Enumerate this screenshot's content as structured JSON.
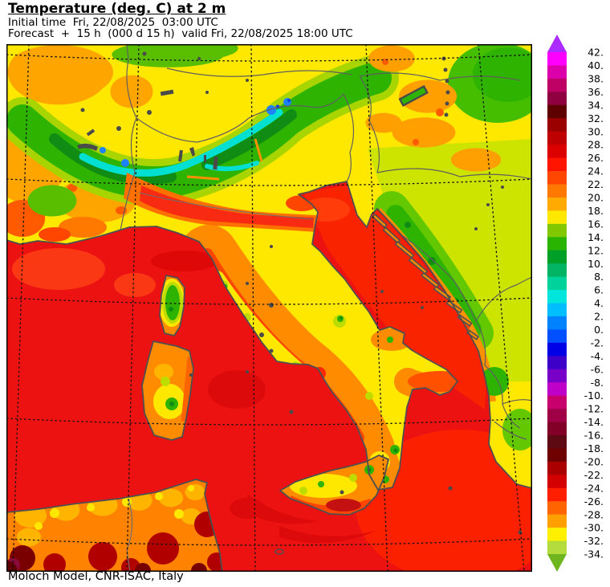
{
  "header": {
    "title": "Temperature (deg. C) at 2 m",
    "initial_time_line": "Initial time  Fri, 22/08/2025  03:00 UTC",
    "forecast_line": "Forecast  +  15 h  (000 d 15 h)  valid Fri, 22/08/2025 18:00 UTC"
  },
  "footer": {
    "credit": "Moloch Model, CNR-ISAC, Italy"
  },
  "colorbar": {
    "unit": "deg. C",
    "tick_labels": [
      "42.",
      "40.",
      "38.",
      "36.",
      "34.",
      "32.",
      "30.",
      "28.",
      "26.",
      "24.",
      "22.",
      "20.",
      "18.",
      "16.",
      "14.",
      "12.",
      "10.",
      "8.",
      "6.",
      "4.",
      "2.",
      "0.",
      "-2.",
      "-4.",
      "-6.",
      "-8.",
      "-10.",
      "-12.",
      "-14.",
      "-16.",
      "-18.",
      "-20.",
      "-22.",
      "-24.",
      "-26.",
      "-28.",
      "-30.",
      "-32.",
      "-34."
    ],
    "band_colors": [
      "#FF00FF",
      "#DC00AA",
      "#BE0064",
      "#8E0040",
      "#5E0000",
      "#9A0000",
      "#BE0000",
      "#DC0000",
      "#FF1400",
      "#FF4600",
      "#FF7800",
      "#FFAA00",
      "#FFE800",
      "#82C800",
      "#28B400",
      "#00A028",
      "#00B464",
      "#00D29B",
      "#00E6DC",
      "#00BEFF",
      "#0082FF",
      "#0050FF",
      "#0000E6",
      "#3C00C8",
      "#7800C8",
      "#BE00C8",
      "#C8006E",
      "#A00046",
      "#820028",
      "#5E0A14",
      "#6E0000",
      "#AA0000",
      "#D20000",
      "#FF1E00",
      "#FF6400",
      "#FFA000",
      "#FFF000",
      "#B4DC3C"
    ],
    "arrow_top_color": "#AC2CFF",
    "arrow_bottom_color": "#6EB51E"
  }
}
